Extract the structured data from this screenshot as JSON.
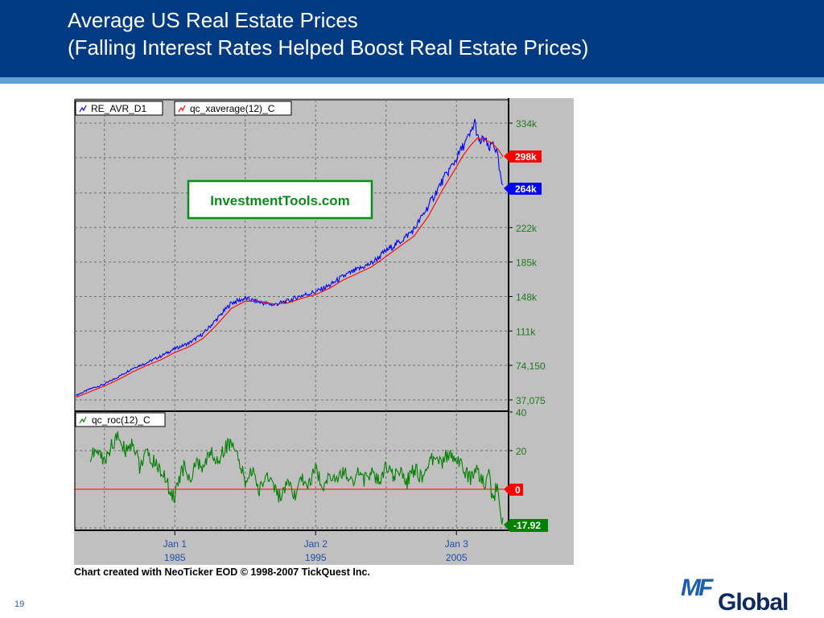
{
  "slide": {
    "title_line1": "Average US Real Estate Prices",
    "title_line2": "(Falling Interest Rates Helped Boost Real Estate Prices)",
    "caption": "Chart created with NeoTicker EOD © 1998-2007 TickQuest Inc.",
    "page_number": "19",
    "logo_mf": "MF",
    "logo_global": "Global",
    "colors": {
      "header": "#003a80",
      "rule": "#5ea3d1",
      "plot_bg": "#c0c0c0"
    }
  },
  "chart_data": [
    {
      "type": "line",
      "panel": "price",
      "watermark": "InvestmentTools.com",
      "x_tick_labels": [
        {
          "month": "Jan 1",
          "year": "1985",
          "x": 1985.0
        },
        {
          "month": "Jan 2",
          "year": "1995",
          "x": 1995.0
        },
        {
          "month": "Jan 3",
          "year": "2005",
          "x": 2005.0
        }
      ],
      "xlim": [
        1977.9,
        2008.7
      ],
      "ylim": [
        37075,
        370000
      ],
      "y_tick_labels": [
        {
          "label": "37,075",
          "value": 37075
        },
        {
          "label": "74,150",
          "value": 74150
        },
        {
          "label": "111k",
          "value": 111000
        },
        {
          "label": "148k",
          "value": 148000
        },
        {
          "label": "185k",
          "value": 185000
        },
        {
          "label": "222k",
          "value": 222000
        },
        {
          "label": "334k",
          "value": 334000
        }
      ],
      "grid": true,
      "legend_position": "top-left",
      "series": [
        {
          "name": "RE_AVR_D1",
          "color": "#0000ff",
          "last_label": "264k",
          "points": [
            [
              1978.0,
              42000
            ],
            [
              1979.0,
              49000
            ],
            [
              1980.0,
              54000
            ],
            [
              1981.0,
              62000
            ],
            [
              1982.0,
              71000
            ],
            [
              1983.0,
              77000
            ],
            [
              1984.0,
              84000
            ],
            [
              1985.0,
              92000
            ],
            [
              1986.0,
              98000
            ],
            [
              1987.0,
              108000
            ],
            [
              1988.0,
              124000
            ],
            [
              1989.0,
              141000
            ],
            [
              1990.0,
              146000
            ],
            [
              1991.0,
              142000
            ],
            [
              1992.0,
              139000
            ],
            [
              1993.0,
              143000
            ],
            [
              1994.0,
              149000
            ],
            [
              1995.0,
              153000
            ],
            [
              1996.0,
              160000
            ],
            [
              1997.0,
              170000
            ],
            [
              1998.0,
              177000
            ],
            [
              1999.0,
              184000
            ],
            [
              2000.0,
              197000
            ],
            [
              2001.0,
              207000
            ],
            [
              2002.0,
              220000
            ],
            [
              2003.0,
              245000
            ],
            [
              2004.0,
              272000
            ],
            [
              2005.0,
              296000
            ],
            [
              2005.5,
              310000
            ],
            [
              2006.0,
              322000
            ],
            [
              2006.3,
              336000
            ],
            [
              2006.6,
              312000
            ],
            [
              2007.0,
              318000
            ],
            [
              2007.3,
              305000
            ],
            [
              2007.6,
              314000
            ],
            [
              2007.9,
              300000
            ],
            [
              2008.1,
              278000
            ],
            [
              2008.3,
              264000
            ]
          ]
        },
        {
          "name": "qc_xaverage(12)_C",
          "color": "#ff0000",
          "last_label": "298k",
          "points": [
            [
              1978.0,
              40000
            ],
            [
              1979.0,
              46000
            ],
            [
              1980.0,
              52000
            ],
            [
              1981.0,
              59000
            ],
            [
              1982.0,
              67000
            ],
            [
              1983.0,
              74000
            ],
            [
              1984.0,
              80000
            ],
            [
              1985.0,
              88000
            ],
            [
              1986.0,
              94000
            ],
            [
              1987.0,
              103000
            ],
            [
              1988.0,
              118000
            ],
            [
              1989.0,
              135000
            ],
            [
              1990.0,
              143000
            ],
            [
              1991.0,
              143000
            ],
            [
              1992.0,
              140000
            ],
            [
              1993.0,
              141000
            ],
            [
              1994.0,
              146000
            ],
            [
              1995.0,
              150000
            ],
            [
              1996.0,
              157000
            ],
            [
              1997.0,
              166000
            ],
            [
              1998.0,
              173000
            ],
            [
              1999.0,
              180000
            ],
            [
              2000.0,
              191000
            ],
            [
              2001.0,
              202000
            ],
            [
              2002.0,
              213000
            ],
            [
              2003.0,
              234000
            ],
            [
              2004.0,
              262000
            ],
            [
              2005.0,
              287000
            ],
            [
              2005.5,
              300000
            ],
            [
              2006.0,
              310000
            ],
            [
              2006.5,
              318000
            ],
            [
              2007.0,
              316000
            ],
            [
              2007.5,
              313000
            ],
            [
              2008.0,
              305000
            ],
            [
              2008.3,
              298000
            ]
          ]
        }
      ]
    },
    {
      "type": "line",
      "panel": "rate_of_change",
      "xlim": [
        1977.9,
        2008.7
      ],
      "ylim": [
        -22,
        40
      ],
      "y_tick_labels": [
        {
          "label": "40",
          "value": 40
        },
        {
          "label": "20",
          "value": 20
        },
        {
          "label": "0",
          "value": 0
        }
      ],
      "grid": true,
      "legend_position": "top-left",
      "zero_line_color": "#ff0000",
      "zero_label": "0",
      "series": [
        {
          "name": "qc_roc(12)_C",
          "color": "#008000",
          "last_label": "-17.92",
          "points": [
            [
              1979.0,
              17
            ],
            [
              1979.5,
              20
            ],
            [
              1980.0,
              14
            ],
            [
              1980.5,
              23
            ],
            [
              1981.0,
              27
            ],
            [
              1981.5,
              20
            ],
            [
              1982.0,
              25
            ],
            [
              1982.5,
              12
            ],
            [
              1983.0,
              18
            ],
            [
              1983.5,
              14
            ],
            [
              1984.0,
              10
            ],
            [
              1984.5,
              2
            ],
            [
              1985.0,
              -5
            ],
            [
              1985.3,
              6
            ],
            [
              1985.7,
              12
            ],
            [
              1986.0,
              4
            ],
            [
              1986.5,
              14
            ],
            [
              1987.0,
              10
            ],
            [
              1987.5,
              20
            ],
            [
              1988.0,
              14
            ],
            [
              1988.5,
              21
            ],
            [
              1989.0,
              25
            ],
            [
              1989.5,
              15
            ],
            [
              1990.0,
              4
            ],
            [
              1990.5,
              10
            ],
            [
              1991.0,
              -1
            ],
            [
              1991.5,
              8
            ],
            [
              1992.0,
              3
            ],
            [
              1992.5,
              -5
            ],
            [
              1993.0,
              2
            ],
            [
              1993.5,
              -4
            ],
            [
              1994.0,
              6
            ],
            [
              1994.5,
              2
            ],
            [
              1995.0,
              10
            ],
            [
              1995.5,
              2
            ],
            [
              1996.0,
              8
            ],
            [
              1996.5,
              3
            ],
            [
              1997.0,
              10
            ],
            [
              1997.5,
              4
            ],
            [
              1998.0,
              8
            ],
            [
              1998.5,
              5
            ],
            [
              1999.0,
              9
            ],
            [
              1999.5,
              3
            ],
            [
              2000.0,
              12
            ],
            [
              2000.5,
              6
            ],
            [
              2001.0,
              10
            ],
            [
              2001.5,
              4
            ],
            [
              2002.0,
              11
            ],
            [
              2002.5,
              6
            ],
            [
              2003.0,
              12
            ],
            [
              2003.5,
              18
            ],
            [
              2004.0,
              14
            ],
            [
              2004.5,
              19
            ],
            [
              2005.0,
              17
            ],
            [
              2005.5,
              10
            ],
            [
              2006.0,
              6
            ],
            [
              2006.5,
              9
            ],
            [
              2007.0,
              2
            ],
            [
              2007.3,
              7
            ],
            [
              2007.6,
              -6
            ],
            [
              2007.9,
              3
            ],
            [
              2008.1,
              -10
            ],
            [
              2008.3,
              -17.92
            ]
          ]
        }
      ]
    }
  ]
}
